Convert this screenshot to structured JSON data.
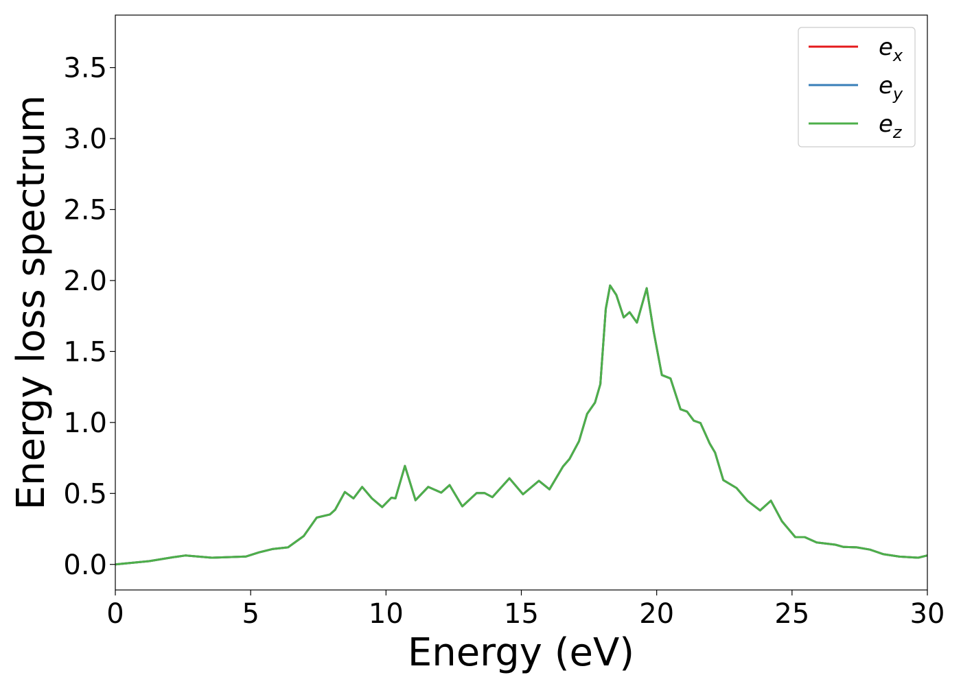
{
  "chart_data": {
    "type": "line",
    "title": "",
    "xlabel": "Energy (eV)",
    "ylabel": "Energy loss spectrum",
    "xlim": [
      0,
      30
    ],
    "ylim": [
      -0.18,
      3.87
    ],
    "xticks": [
      0,
      5,
      10,
      15,
      20,
      25,
      30
    ],
    "xtick_labels": [
      "0",
      "5",
      "10",
      "15",
      "20",
      "25",
      "30"
    ],
    "yticks": [
      0.0,
      0.5,
      1.0,
      1.5,
      2.0,
      2.5,
      3.0,
      3.5
    ],
    "ytick_labels": [
      "0.0",
      "0.5",
      "1.0",
      "1.5",
      "2.0",
      "2.5",
      "3.0",
      "3.5"
    ],
    "grid": false,
    "legend_position": "top-right",
    "x": [
      0,
      1.25,
      2.12,
      2.6,
      3.57,
      4.83,
      5.31,
      5.8,
      6.38,
      6.96,
      7.44,
      7.93,
      8.12,
      8.48,
      8.8,
      9.12,
      9.48,
      9.86,
      10.2,
      10.35,
      10.7,
      11.09,
      11.56,
      12.04,
      12.35,
      12.82,
      13.35,
      13.64,
      13.93,
      14.56,
      15.06,
      15.65,
      16.04,
      16.54,
      16.78,
      17.13,
      17.43,
      17.72,
      17.92,
      18.12,
      18.28,
      18.51,
      18.78,
      19.0,
      19.27,
      19.63,
      19.89,
      20.19,
      20.51,
      20.88,
      21.12,
      21.37,
      21.62,
      21.96,
      22.16,
      22.46,
      22.95,
      23.35,
      23.82,
      24.22,
      24.63,
      25.12,
      25.47,
      25.91,
      26.6,
      26.9,
      27.39,
      27.88,
      28.38,
      28.97,
      29.66,
      30.0
    ],
    "series": [
      {
        "name": "e_x",
        "label_base": "e",
        "label_sub": "x",
        "color": "#e41a1c",
        "values": [
          0,
          0.023,
          0.05,
          0.063,
          0.047,
          0.056,
          0.085,
          0.108,
          0.12,
          0.2,
          0.33,
          0.352,
          0.385,
          0.51,
          0.465,
          0.546,
          0.465,
          0.404,
          0.47,
          0.465,
          0.694,
          0.452,
          0.546,
          0.506,
          0.559,
          0.409,
          0.503,
          0.503,
          0.474,
          0.607,
          0.494,
          0.589,
          0.529,
          0.69,
          0.743,
          0.868,
          1.06,
          1.14,
          1.27,
          1.8,
          1.965,
          1.898,
          1.74,
          1.777,
          1.704,
          1.946,
          1.64,
          1.334,
          1.31,
          1.093,
          1.077,
          1.013,
          0.996,
          0.851,
          0.787,
          0.594,
          0.538,
          0.449,
          0.38,
          0.449,
          0.304,
          0.192,
          0.192,
          0.155,
          0.139,
          0.123,
          0.12,
          0.104,
          0.072,
          0.055,
          0.047,
          0.063
        ]
      },
      {
        "name": "e_y",
        "label_base": "e",
        "label_sub": "y",
        "color": "#377eb8",
        "values": [
          0,
          0.023,
          0.05,
          0.063,
          0.047,
          0.056,
          0.085,
          0.108,
          0.12,
          0.2,
          0.33,
          0.352,
          0.385,
          0.51,
          0.465,
          0.546,
          0.465,
          0.404,
          0.47,
          0.465,
          0.694,
          0.452,
          0.546,
          0.506,
          0.559,
          0.409,
          0.503,
          0.503,
          0.474,
          0.607,
          0.494,
          0.589,
          0.529,
          0.69,
          0.743,
          0.868,
          1.06,
          1.14,
          1.27,
          1.8,
          1.965,
          1.898,
          1.74,
          1.777,
          1.704,
          1.946,
          1.64,
          1.334,
          1.31,
          1.093,
          1.077,
          1.013,
          0.996,
          0.851,
          0.787,
          0.594,
          0.538,
          0.449,
          0.38,
          0.449,
          0.304,
          0.192,
          0.192,
          0.155,
          0.139,
          0.123,
          0.12,
          0.104,
          0.072,
          0.055,
          0.047,
          0.063
        ]
      },
      {
        "name": "e_z",
        "label_base": "e",
        "label_sub": "z",
        "color": "#4daf4a",
        "values": [
          0,
          0.023,
          0.05,
          0.063,
          0.047,
          0.056,
          0.085,
          0.108,
          0.12,
          0.2,
          0.33,
          0.352,
          0.385,
          0.51,
          0.465,
          0.546,
          0.465,
          0.404,
          0.47,
          0.465,
          0.694,
          0.452,
          0.546,
          0.506,
          0.559,
          0.409,
          0.503,
          0.503,
          0.474,
          0.607,
          0.494,
          0.589,
          0.529,
          0.69,
          0.743,
          0.868,
          1.06,
          1.14,
          1.27,
          1.8,
          1.965,
          1.898,
          1.74,
          1.777,
          1.704,
          1.946,
          1.64,
          1.334,
          1.31,
          1.093,
          1.077,
          1.013,
          0.996,
          0.851,
          0.787,
          0.594,
          0.538,
          0.449,
          0.38,
          0.449,
          0.304,
          0.192,
          0.192,
          0.155,
          0.139,
          0.123,
          0.12,
          0.104,
          0.072,
          0.055,
          0.047,
          0.063
        ]
      }
    ]
  }
}
